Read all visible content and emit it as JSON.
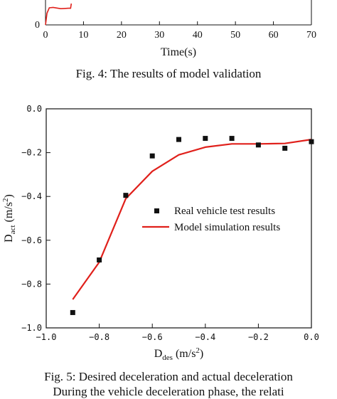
{
  "chart_data": [
    {
      "type": "line",
      "xlabel": "Time(s)",
      "ylabel": "",
      "xlim": [
        0,
        70
      ],
      "ylim_visible_bottom": 0,
      "x_ticks": [
        "0",
        "10",
        "20",
        "30",
        "40",
        "50",
        "60",
        "70"
      ],
      "y_ticks": [
        "0"
      ],
      "grid": false,
      "partial": true,
      "series": [
        {
          "color": "#e0201b",
          "x": [
            0,
            0.4,
            1.0,
            2.0,
            3.0,
            4.0,
            5.0,
            6.0,
            6.6,
            6.8
          ],
          "values": [
            0,
            0.55,
            0.8,
            0.82,
            0.79,
            0.76,
            0.77,
            0.78,
            0.78,
            1.0
          ]
        }
      ]
    },
    {
      "type": "scatter",
      "xlabel": "D_des (m/s²)",
      "xlabel_parts": {
        "main": "D",
        "sub": "des",
        "unit_pre": " (m/s",
        "sup": "2",
        "unit_post": ")"
      },
      "ylabel": "D_act (m/s²)",
      "ylabel_parts": {
        "main": "D",
        "sub": "act",
        "unit_pre": " (m/s",
        "sup": "2",
        "unit_post": ")"
      },
      "xlim": [
        -1.0,
        0.0
      ],
      "ylim": [
        -1.0,
        0.0
      ],
      "x_ticks": [
        "-1.0",
        "-0.8",
        "-0.6",
        "-0.4",
        "-0.2",
        "0.0"
      ],
      "y_ticks": [
        "0.0",
        "-0.2",
        "-0.4",
        "-0.6",
        "-0.8",
        "-1.0"
      ],
      "grid": false,
      "legend_position": "middle-right",
      "series": [
        {
          "name": "Real vehicle test results",
          "marker": "square",
          "color": "#111111",
          "x": [
            -0.9,
            -0.8,
            -0.7,
            -0.6,
            -0.5,
            -0.4,
            -0.3,
            -0.2,
            -0.1,
            0.0
          ],
          "values": [
            -0.93,
            -0.69,
            -0.395,
            -0.215,
            -0.14,
            -0.135,
            -0.135,
            -0.165,
            -0.18,
            -0.15
          ]
        },
        {
          "name": "Model simulation results",
          "marker": "line",
          "color": "#e0201b",
          "x": [
            -0.9,
            -0.8,
            -0.7,
            -0.6,
            -0.5,
            -0.4,
            -0.3,
            -0.2,
            -0.1,
            0.0
          ],
          "values": [
            -0.87,
            -0.7,
            -0.41,
            -0.285,
            -0.21,
            -0.175,
            -0.16,
            -0.16,
            -0.158,
            -0.14
          ]
        }
      ]
    }
  ],
  "captions": {
    "fig4": "Fig. 4: The results of model validation",
    "fig5": "Fig. 5: Desired deceleration and actual deceleration",
    "body_fragment": "During the vehicle deceleration phase, the relati"
  }
}
